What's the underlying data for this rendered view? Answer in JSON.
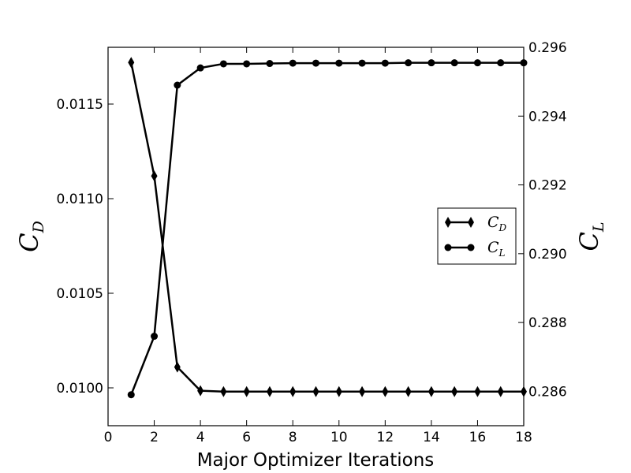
{
  "chart_data": {
    "type": "line",
    "xlabel": "Major Optimizer Iterations",
    "ylabel_left": {
      "base": "C",
      "sub": "D"
    },
    "ylabel_right": {
      "base": "C",
      "sub": "L"
    },
    "xlim": [
      0,
      18
    ],
    "ylim_left": [
      0.0098,
      0.0118
    ],
    "ylim_right": [
      0.285,
      0.296
    ],
    "x_ticks": [
      "0",
      "2",
      "4",
      "6",
      "8",
      "10",
      "12",
      "14",
      "16",
      "18"
    ],
    "y_left_ticks": [
      "0.0100",
      "0.0105",
      "0.0110",
      "0.0115"
    ],
    "y_right_ticks": [
      "0.286",
      "0.288",
      "0.290",
      "0.292",
      "0.294",
      "0.296"
    ],
    "grid": false,
    "legend_position": "center-right",
    "series": [
      {
        "name": {
          "base": "C",
          "sub": "D"
        },
        "axis": "left",
        "marker": "diamond",
        "color": "#000000",
        "x": [
          1,
          2,
          3,
          4,
          5,
          6,
          7,
          8,
          9,
          10,
          11,
          12,
          13,
          14,
          15,
          16,
          17,
          18
        ],
        "values": [
          0.01172,
          0.01112,
          0.01011,
          0.009985,
          0.00998,
          0.00998,
          0.00998,
          0.00998,
          0.00998,
          0.00998,
          0.00998,
          0.00998,
          0.00998,
          0.00998,
          0.00998,
          0.00998,
          0.00998,
          0.00998
        ]
      },
      {
        "name": {
          "base": "C",
          "sub": "L"
        },
        "axis": "right",
        "marker": "circle",
        "color": "#000000",
        "x": [
          1,
          2,
          3,
          4,
          5,
          6,
          7,
          8,
          9,
          10,
          11,
          12,
          13,
          14,
          15,
          16,
          17,
          18
        ],
        "values": [
          0.2859,
          0.2876,
          0.2949,
          0.2954,
          0.29552,
          0.29552,
          0.29553,
          0.29554,
          0.29554,
          0.29554,
          0.29554,
          0.29554,
          0.29555,
          0.29555,
          0.29555,
          0.29555,
          0.29555,
          0.29555
        ]
      }
    ]
  }
}
